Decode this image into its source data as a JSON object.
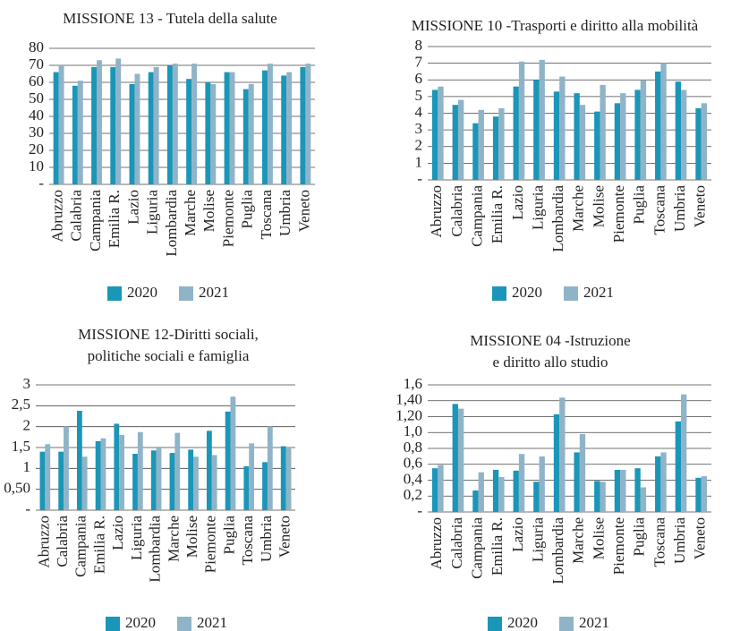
{
  "chart_data": [
    {
      "type": "bar",
      "title": [
        "MISSIONE  13 - Tutela  della  salute"
      ],
      "categories": [
        "Abruzzo",
        "Calabria",
        "Campania",
        "Emilia R.",
        "Lazio",
        "Liguria",
        "Lombardia",
        "Marche",
        "Molise",
        "Piemonte",
        "Puglia",
        "Toscana",
        "Umbria",
        "Veneto"
      ],
      "series": [
        {
          "name": "2020",
          "color": "#1a96b8",
          "values": [
            66,
            58,
            69,
            69,
            59,
            66,
            70,
            62,
            60,
            66,
            56,
            67,
            64,
            69
          ]
        },
        {
          "name": "2021",
          "color": "#8fb4c8",
          "values": [
            70,
            61,
            73,
            74,
            65,
            69,
            71,
            71,
            59,
            66,
            59,
            71,
            66,
            71
          ]
        }
      ],
      "ylim": [
        0,
        80
      ],
      "yticks": [
        {
          "value": 0,
          "label": "-"
        },
        10,
        20,
        30,
        40,
        50,
        60,
        70,
        80
      ],
      "grid": true,
      "legend": "bottom"
    },
    {
      "type": "bar",
      "title": [
        "MISSIONE 10 -Trasporti e diritto alla mobilità"
      ],
      "categories": [
        "Abruzzo",
        "Calabria",
        "Campania",
        "Emilia R.",
        "Lazio",
        "Liguria",
        "Lombardia",
        "Marche",
        "Molise",
        "Piemonte",
        "Puglia",
        "Toscana",
        "Umbria",
        "Veneto"
      ],
      "series": [
        {
          "name": "2020",
          "color": "#1a96b8",
          "values": [
            5.4,
            4.5,
            3.4,
            3.8,
            5.6,
            6.0,
            5.3,
            5.2,
            4.1,
            4.6,
            5.4,
            6.5,
            5.9,
            4.3
          ]
        },
        {
          "name": "2021",
          "color": "#8fb4c8",
          "values": [
            5.6,
            4.8,
            4.2,
            4.3,
            7.1,
            7.2,
            6.2,
            4.5,
            5.7,
            5.2,
            6.0,
            7.0,
            5.4,
            4.6
          ]
        }
      ],
      "ylim": [
        0,
        8
      ],
      "yticks": [
        {
          "value": 0,
          "label": "-"
        },
        1,
        2,
        3,
        4,
        5,
        6,
        7,
        8
      ],
      "grid": true,
      "legend": "bottom"
    },
    {
      "type": "bar",
      "title": [
        "MISSIONE 12-Diritti sociali,",
        "politiche sociali e famiglia"
      ],
      "categories": [
        "Abruzzo",
        "Calabria",
        "Campania",
        "Emilia R.",
        "Lazio",
        "Liguria",
        "Lombardia",
        "Marche",
        "Molise",
        "Piemonte",
        "Puglia",
        "Toscana",
        "Umbria",
        "Veneto"
      ],
      "series": [
        {
          "name": "2020",
          "color": "#1a96b8",
          "values": [
            1.4,
            1.4,
            2.38,
            1.65,
            2.07,
            1.35,
            1.43,
            1.37,
            1.45,
            1.9,
            2.36,
            1.05,
            1.15,
            1.53
          ]
        },
        {
          "name": "2021",
          "color": "#8fb4c8",
          "values": [
            1.58,
            2.0,
            1.28,
            1.72,
            1.8,
            1.87,
            1.52,
            1.85,
            1.28,
            1.32,
            2.72,
            1.6,
            2.0,
            1.48
          ]
        }
      ],
      "ylim": [
        0,
        3
      ],
      "yticks": [
        {
          "value": 0,
          "label": "-"
        },
        {
          "value": 0.5,
          "label": "0,50"
        },
        1,
        {
          "value": 1.5,
          "label": "1,5"
        },
        2,
        {
          "value": 2.5,
          "label": "2,5"
        },
        3
      ],
      "grid": true,
      "legend": "bottom"
    },
    {
      "type": "bar",
      "title": [
        "MISSIONE 04 -Istruzione",
        "e diritto allo studio"
      ],
      "categories": [
        "Abruzzo",
        "Calabria",
        "Campania",
        "Emilia R.",
        "Lazio",
        "Liguria",
        "Lombardia",
        "Marche",
        "Molise",
        "Piemonte",
        "Puglia",
        "Toscana",
        "Umbria",
        "Veneto"
      ],
      "series": [
        {
          "name": "2020",
          "color": "#1a96b8",
          "values": [
            0.55,
            1.36,
            0.27,
            0.53,
            0.52,
            0.38,
            1.23,
            0.75,
            0.39,
            0.53,
            0.55,
            0.7,
            1.14,
            0.43
          ]
        },
        {
          "name": "2021",
          "color": "#8fb4c8",
          "values": [
            0.59,
            1.3,
            0.5,
            0.44,
            0.73,
            0.7,
            1.44,
            0.98,
            0.38,
            0.53,
            0.31,
            0.75,
            1.48,
            0.45
          ]
        }
      ],
      "ylim": [
        0,
        1.6
      ],
      "yticks": [
        {
          "value": 0,
          "label": "-"
        },
        {
          "value": 0.2,
          "label": "0,2"
        },
        {
          "value": 0.4,
          "label": "0,4"
        },
        {
          "value": 0.6,
          "label": "0,6"
        },
        {
          "value": 0.8,
          "label": "0,8"
        },
        {
          "value": 1.0,
          "label": "1,0"
        },
        {
          "value": 1.2,
          "label": "1,20"
        },
        {
          "value": 1.4,
          "label": "1,40"
        },
        {
          "value": 1.6,
          "label": "1,6"
        }
      ],
      "grid": true,
      "legend": "bottom"
    }
  ]
}
